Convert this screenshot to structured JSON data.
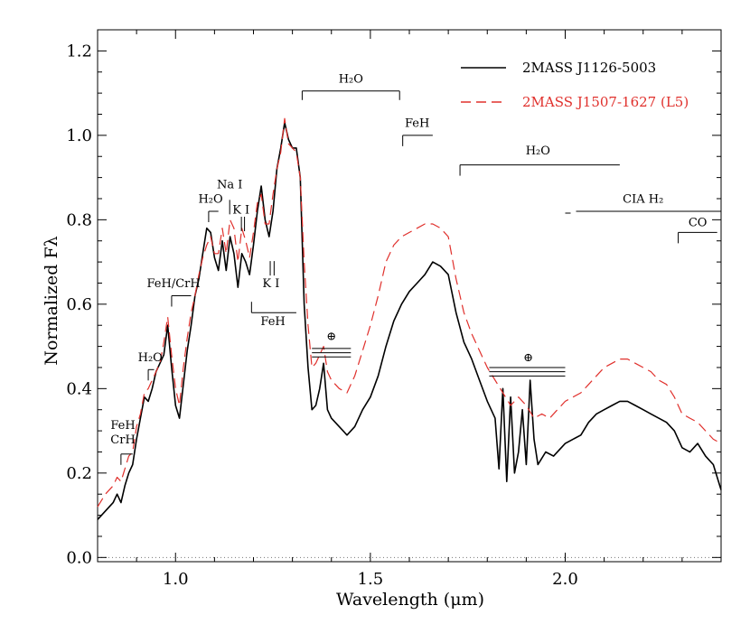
{
  "chart_data": {
    "type": "line",
    "title": "",
    "xlabel": "Wavelength (μm)",
    "ylabel": "Normalized Fλ",
    "xlim": [
      0.8,
      2.4
    ],
    "ylim": [
      -0.01,
      1.25
    ],
    "x_ticks": [
      1.0,
      1.5,
      2.0
    ],
    "x_tick_labels": [
      "1.0",
      "1.5",
      "2.0"
    ],
    "y_ticks": [
      0.0,
      0.2,
      0.4,
      0.6,
      0.8,
      1.0,
      1.2
    ],
    "y_tick_labels": [
      "0.0",
      "0.2",
      "0.4",
      "0.6",
      "0.8",
      "1.0",
      "1.2"
    ],
    "zero_line": 0.0,
    "legend_position": "top-right",
    "series": [
      {
        "name": "2MASS J1126-5003",
        "color": "#000000",
        "dash": "solid",
        "points": [
          [
            0.8,
            0.09
          ],
          [
            0.82,
            0.11
          ],
          [
            0.84,
            0.13
          ],
          [
            0.85,
            0.15
          ],
          [
            0.86,
            0.13
          ],
          [
            0.87,
            0.17
          ],
          [
            0.88,
            0.2
          ],
          [
            0.89,
            0.22
          ],
          [
            0.9,
            0.28
          ],
          [
            0.91,
            0.33
          ],
          [
            0.92,
            0.38
          ],
          [
            0.93,
            0.37
          ],
          [
            0.94,
            0.4
          ],
          [
            0.95,
            0.44
          ],
          [
            0.96,
            0.46
          ],
          [
            0.97,
            0.48
          ],
          [
            0.98,
            0.55
          ],
          [
            0.99,
            0.45
          ],
          [
            1.0,
            0.36
          ],
          [
            1.01,
            0.33
          ],
          [
            1.02,
            0.41
          ],
          [
            1.03,
            0.49
          ],
          [
            1.04,
            0.55
          ],
          [
            1.05,
            0.62
          ],
          [
            1.06,
            0.66
          ],
          [
            1.07,
            0.72
          ],
          [
            1.08,
            0.78
          ],
          [
            1.09,
            0.77
          ],
          [
            1.1,
            0.71
          ],
          [
            1.11,
            0.68
          ],
          [
            1.12,
            0.75
          ],
          [
            1.13,
            0.68
          ],
          [
            1.14,
            0.76
          ],
          [
            1.15,
            0.72
          ],
          [
            1.16,
            0.64
          ],
          [
            1.17,
            0.72
          ],
          [
            1.18,
            0.7
          ],
          [
            1.19,
            0.67
          ],
          [
            1.2,
            0.74
          ],
          [
            1.21,
            0.82
          ],
          [
            1.22,
            0.88
          ],
          [
            1.23,
            0.8
          ],
          [
            1.24,
            0.76
          ],
          [
            1.25,
            0.82
          ],
          [
            1.26,
            0.92
          ],
          [
            1.27,
            0.97
          ],
          [
            1.28,
            1.03
          ],
          [
            1.29,
            0.99
          ],
          [
            1.3,
            0.97
          ],
          [
            1.31,
            0.97
          ],
          [
            1.32,
            0.9
          ],
          [
            1.33,
            0.6
          ],
          [
            1.34,
            0.45
          ],
          [
            1.35,
            0.35
          ],
          [
            1.36,
            0.36
          ],
          [
            1.37,
            0.4
          ],
          [
            1.38,
            0.46
          ],
          [
            1.39,
            0.35
          ],
          [
            1.4,
            0.33
          ],
          [
            1.42,
            0.31
          ],
          [
            1.44,
            0.29
          ],
          [
            1.46,
            0.31
          ],
          [
            1.48,
            0.35
          ],
          [
            1.5,
            0.38
          ],
          [
            1.52,
            0.43
          ],
          [
            1.54,
            0.5
          ],
          [
            1.56,
            0.56
          ],
          [
            1.58,
            0.6
          ],
          [
            1.6,
            0.63
          ],
          [
            1.62,
            0.65
          ],
          [
            1.64,
            0.67
          ],
          [
            1.66,
            0.7
          ],
          [
            1.68,
            0.69
          ],
          [
            1.7,
            0.67
          ],
          [
            1.72,
            0.58
          ],
          [
            1.74,
            0.51
          ],
          [
            1.76,
            0.47
          ],
          [
            1.78,
            0.42
          ],
          [
            1.8,
            0.37
          ],
          [
            1.82,
            0.33
          ],
          [
            1.83,
            0.21
          ],
          [
            1.84,
            0.4
          ],
          [
            1.85,
            0.18
          ],
          [
            1.86,
            0.38
          ],
          [
            1.87,
            0.2
          ],
          [
            1.88,
            0.25
          ],
          [
            1.89,
            0.35
          ],
          [
            1.9,
            0.22
          ],
          [
            1.91,
            0.42
          ],
          [
            1.92,
            0.28
          ],
          [
            1.93,
            0.22
          ],
          [
            1.95,
            0.25
          ],
          [
            1.97,
            0.24
          ],
          [
            2.0,
            0.27
          ],
          [
            2.02,
            0.28
          ],
          [
            2.04,
            0.29
          ],
          [
            2.06,
            0.32
          ],
          [
            2.08,
            0.34
          ],
          [
            2.1,
            0.35
          ],
          [
            2.12,
            0.36
          ],
          [
            2.14,
            0.37
          ],
          [
            2.16,
            0.37
          ],
          [
            2.18,
            0.36
          ],
          [
            2.2,
            0.35
          ],
          [
            2.22,
            0.34
          ],
          [
            2.24,
            0.33
          ],
          [
            2.26,
            0.32
          ],
          [
            2.28,
            0.3
          ],
          [
            2.3,
            0.26
          ],
          [
            2.32,
            0.25
          ],
          [
            2.34,
            0.27
          ],
          [
            2.36,
            0.24
          ],
          [
            2.38,
            0.22
          ],
          [
            2.4,
            0.16
          ]
        ]
      },
      {
        "name": "2MASS J1507-1627 (L5)",
        "color": "#e0302c",
        "dash": "dashed",
        "points": [
          [
            0.8,
            0.12
          ],
          [
            0.82,
            0.15
          ],
          [
            0.84,
            0.17
          ],
          [
            0.85,
            0.19
          ],
          [
            0.86,
            0.18
          ],
          [
            0.87,
            0.21
          ],
          [
            0.88,
            0.24
          ],
          [
            0.89,
            0.25
          ],
          [
            0.9,
            0.31
          ],
          [
            0.91,
            0.34
          ],
          [
            0.92,
            0.39
          ],
          [
            0.93,
            0.4
          ],
          [
            0.94,
            0.42
          ],
          [
            0.95,
            0.44
          ],
          [
            0.96,
            0.46
          ],
          [
            0.97,
            0.51
          ],
          [
            0.98,
            0.57
          ],
          [
            0.99,
            0.48
          ],
          [
            1.0,
            0.4
          ],
          [
            1.01,
            0.36
          ],
          [
            1.02,
            0.45
          ],
          [
            1.03,
            0.52
          ],
          [
            1.04,
            0.58
          ],
          [
            1.05,
            0.62
          ],
          [
            1.06,
            0.67
          ],
          [
            1.07,
            0.71
          ],
          [
            1.08,
            0.74
          ],
          [
            1.09,
            0.76
          ],
          [
            1.1,
            0.72
          ],
          [
            1.11,
            0.72
          ],
          [
            1.12,
            0.78
          ],
          [
            1.13,
            0.72
          ],
          [
            1.14,
            0.8
          ],
          [
            1.15,
            0.78
          ],
          [
            1.16,
            0.7
          ],
          [
            1.17,
            0.78
          ],
          [
            1.18,
            0.75
          ],
          [
            1.19,
            0.71
          ],
          [
            1.2,
            0.77
          ],
          [
            1.21,
            0.84
          ],
          [
            1.22,
            0.86
          ],
          [
            1.23,
            0.79
          ],
          [
            1.24,
            0.79
          ],
          [
            1.25,
            0.86
          ],
          [
            1.26,
            0.92
          ],
          [
            1.27,
            0.96
          ],
          [
            1.28,
            1.04
          ],
          [
            1.29,
            0.98
          ],
          [
            1.3,
            0.97
          ],
          [
            1.31,
            0.96
          ],
          [
            1.32,
            0.9
          ],
          [
            1.33,
            0.7
          ],
          [
            1.34,
            0.55
          ],
          [
            1.35,
            0.45
          ],
          [
            1.36,
            0.46
          ],
          [
            1.37,
            0.48
          ],
          [
            1.38,
            0.5
          ],
          [
            1.39,
            0.44
          ],
          [
            1.4,
            0.42
          ],
          [
            1.42,
            0.4
          ],
          [
            1.44,
            0.39
          ],
          [
            1.46,
            0.43
          ],
          [
            1.48,
            0.49
          ],
          [
            1.5,
            0.55
          ],
          [
            1.52,
            0.62
          ],
          [
            1.54,
            0.7
          ],
          [
            1.56,
            0.74
          ],
          [
            1.58,
            0.76
          ],
          [
            1.6,
            0.77
          ],
          [
            1.62,
            0.78
          ],
          [
            1.64,
            0.79
          ],
          [
            1.66,
            0.79
          ],
          [
            1.68,
            0.78
          ],
          [
            1.7,
            0.76
          ],
          [
            1.72,
            0.66
          ],
          [
            1.74,
            0.58
          ],
          [
            1.76,
            0.53
          ],
          [
            1.78,
            0.49
          ],
          [
            1.8,
            0.45
          ],
          [
            1.82,
            0.42
          ],
          [
            1.84,
            0.39
          ],
          [
            1.86,
            0.36
          ],
          [
            1.88,
            0.38
          ],
          [
            1.9,
            0.36
          ],
          [
            1.92,
            0.33
          ],
          [
            1.94,
            0.34
          ],
          [
            1.96,
            0.33
          ],
          [
            1.98,
            0.35
          ],
          [
            2.0,
            0.37
          ],
          [
            2.02,
            0.38
          ],
          [
            2.04,
            0.39
          ],
          [
            2.06,
            0.41
          ],
          [
            2.08,
            0.43
          ],
          [
            2.1,
            0.45
          ],
          [
            2.12,
            0.46
          ],
          [
            2.14,
            0.47
          ],
          [
            2.16,
            0.47
          ],
          [
            2.18,
            0.46
          ],
          [
            2.2,
            0.45
          ],
          [
            2.22,
            0.44
          ],
          [
            2.24,
            0.42
          ],
          [
            2.26,
            0.41
          ],
          [
            2.28,
            0.38
          ],
          [
            2.3,
            0.34
          ],
          [
            2.32,
            0.33
          ],
          [
            2.34,
            0.32
          ],
          [
            2.36,
            0.3
          ],
          [
            2.38,
            0.28
          ],
          [
            2.4,
            0.27
          ]
        ]
      }
    ],
    "annotations": [
      {
        "id": "h2o-top",
        "text": "H₂O",
        "type": "bracket",
        "x1": 1.325,
        "x2": 1.575,
        "y": 1.105,
        "tick": "both-down",
        "label_x": 1.45,
        "label_y": 1.125
      },
      {
        "id": "feh-1.6",
        "text": "FeH",
        "type": "bracket",
        "x1": 1.583,
        "x2": 1.66,
        "y": 1.0,
        "tick": "left-down",
        "label_x": 1.62,
        "label_y": 1.02
      },
      {
        "id": "h2o-k",
        "text": "H₂O",
        "type": "bracket",
        "x1": 1.73,
        "x2": 2.14,
        "y": 0.93,
        "tick": "left-down",
        "label_x": 1.93,
        "label_y": 0.955
      },
      {
        "id": "cia-h2",
        "text": "CIA H₂",
        "type": "line",
        "x1": 2.0,
        "x2": 2.4,
        "y": 0.82,
        "label_x": 2.2,
        "label_y": 0.84
      },
      {
        "id": "co",
        "text": "CO",
        "type": "bracket",
        "x1": 2.29,
        "x2": 2.39,
        "y": 0.77,
        "tick": "left-down",
        "label_x": 2.34,
        "label_y": 0.785
      },
      {
        "id": "h2o-1.1",
        "text": "H₂O",
        "type": "bracket",
        "x1": 1.085,
        "x2": 1.11,
        "y": 0.82,
        "tick": "left-down",
        "label_x": 1.09,
        "label_y": 0.84
      },
      {
        "id": "na-i",
        "text": "Na I",
        "type": "marker",
        "x1": 1.139,
        "x2": 1.139,
        "y": 0.83,
        "label_x": 1.139,
        "label_y": 0.875
      },
      {
        "id": "k-i-1.17",
        "text": "K I",
        "type": "marker",
        "x1": 1.169,
        "x2": 1.177,
        "y": 0.79,
        "label_x": 1.168,
        "label_y": 0.815
      },
      {
        "id": "k-i-1.25",
        "text": "K I",
        "type": "marker",
        "x1": 1.243,
        "x2": 1.253,
        "y": 0.685,
        "label_x": 1.245,
        "label_y": 0.64
      },
      {
        "id": "feh-1.2",
        "text": "FeH",
        "type": "bracket",
        "x1": 1.195,
        "x2": 1.31,
        "y": 0.58,
        "tick": "left-up",
        "label_x": 1.25,
        "label_y": 0.55
      },
      {
        "id": "feh-crh-1.0",
        "text": "FeH/CrH",
        "type": "bracket",
        "x1": 0.99,
        "x2": 1.04,
        "y": 0.62,
        "tick": "left-down",
        "label_x": 0.995,
        "label_y": 0.64
      },
      {
        "id": "h2o-0.93",
        "text": "H₂O",
        "type": "bracket",
        "x1": 0.93,
        "x2": 0.945,
        "y": 0.445,
        "tick": "left-down",
        "label_x": 0.935,
        "label_y": 0.465
      },
      {
        "id": "feh-0.87",
        "text": "FeH",
        "type": "text",
        "label_x": 0.865,
        "label_y": 0.305
      },
      {
        "id": "crh-0.87",
        "text": "CrH",
        "type": "bracket",
        "x1": 0.86,
        "x2": 0.89,
        "y": 0.245,
        "tick": "left-down",
        "label_x": 0.865,
        "label_y": 0.27
      },
      {
        "id": "telluric-1",
        "text": "⊕",
        "type": "telluric",
        "x1": 1.35,
        "x2": 1.45,
        "ys": [
          0.475,
          0.485,
          0.495
        ],
        "label_x": 1.4,
        "label_y": 0.515
      },
      {
        "id": "telluric-2",
        "text": "⊕",
        "type": "telluric",
        "x1": 1.805,
        "x2": 2.0,
        "ys": [
          0.43,
          0.44,
          0.45
        ],
        "label_x": 1.905,
        "label_y": 0.465
      }
    ]
  }
}
